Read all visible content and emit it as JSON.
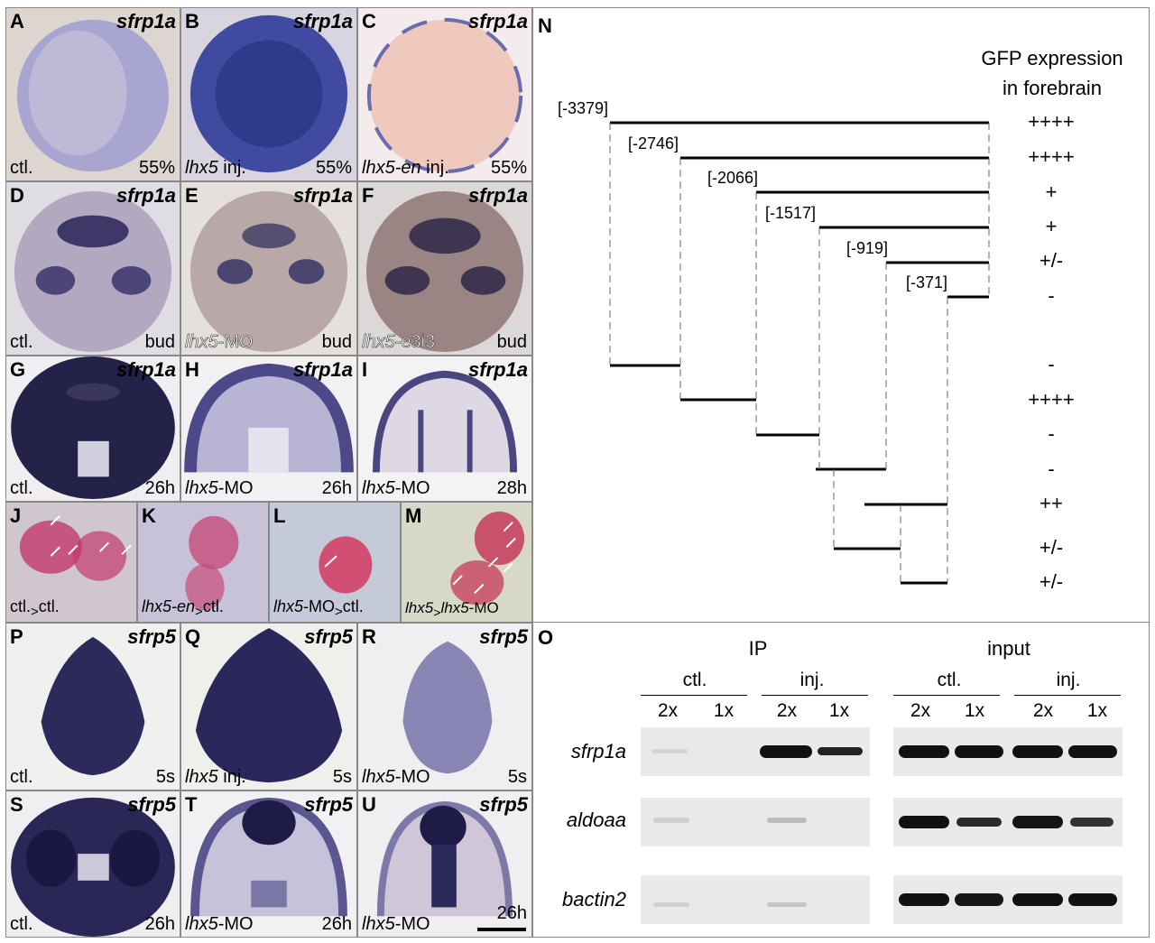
{
  "tiles_row1": [
    {
      "letter": "A",
      "gene": "sfrp1a",
      "cond": "ctl.",
      "stage": "55%"
    },
    {
      "letter": "B",
      "gene": "sfrp1a",
      "cond_i": "lhx5",
      "cond_rest": " inj.",
      "stage": "55%"
    },
    {
      "letter": "C",
      "gene": "sfrp1a",
      "cond_i": "lhx5-en",
      "cond_rest": " inj.",
      "stage": "55%"
    }
  ],
  "tiles_row2": [
    {
      "letter": "D",
      "gene": "sfrp1a",
      "cond": "ctl.",
      "stage": "bud"
    },
    {
      "letter": "E",
      "gene": "sfrp1a",
      "cond_i": "lhx5",
      "cond_rest": "-MO",
      "stage": "bud"
    },
    {
      "letter": "F",
      "gene": "sfrp1a",
      "cond_i": "lhx5",
      "cond_rest": "-e3i3",
      "stage": "bud"
    }
  ],
  "tiles_row3": [
    {
      "letter": "G",
      "gene": "sfrp1a",
      "cond": "ctl.",
      "stage": "26h"
    },
    {
      "letter": "H",
      "gene": "sfrp1a",
      "cond_i": "lhx5",
      "cond_rest": "-MO",
      "stage": "26h"
    },
    {
      "letter": "I",
      "gene": "sfrp1a",
      "cond_i": "lhx5",
      "cond_rest": "-MO",
      "stage": "28h"
    }
  ],
  "tiles_row4": [
    {
      "letter": "J",
      "cond_main": "ctl.",
      "cond_sub": ">",
      "cond_end": "ctl."
    },
    {
      "letter": "K",
      "cond_i": "lhx5-en",
      "cond_sub": ">",
      "cond_end": "ctl."
    },
    {
      "letter": "L",
      "cond_i": "lhx5",
      "cond_main": "-MO",
      "cond_sub": ">",
      "cond_end": "ctl."
    },
    {
      "letter": "M",
      "cond_i": "lhx5",
      "cond_sub": ">",
      "cond_i2": "lhx5",
      "cond_end": "-MO"
    }
  ],
  "tiles_row5": [
    {
      "letter": "P",
      "gene": "sfrp5",
      "cond": "ctl.",
      "stage": "5s"
    },
    {
      "letter": "Q",
      "gene": "sfrp5",
      "cond_i": "lhx5",
      "cond_rest": " inj.",
      "stage": "5s"
    },
    {
      "letter": "R",
      "gene": "sfrp5",
      "cond_i": "lhx5",
      "cond_rest": "-MO",
      "stage": "5s"
    }
  ],
  "tiles_row6": [
    {
      "letter": "S",
      "gene": "sfrp5",
      "cond": "ctl.",
      "stage": "26h"
    },
    {
      "letter": "T",
      "gene": "sfrp5",
      "cond_i": "lhx5",
      "cond_rest": "-MO",
      "stage": "26h"
    },
    {
      "letter": "U",
      "gene": "sfrp5",
      "cond_i": "lhx5",
      "cond_rest": "-MO",
      "stage": "26h"
    }
  ],
  "panel_n": {
    "letter": "N",
    "title_line1": "GFP expression",
    "title_line2": "in forebrain",
    "constructs": [
      "[-3379]",
      "[-2746]",
      "[-2066]",
      "[-1517]",
      "[-919]",
      "[-371]"
    ],
    "scores": [
      "++++",
      "++++",
      "+",
      "+",
      "+/-",
      "-",
      "-",
      "++++",
      "-",
      "-",
      "++",
      "+/-",
      "+/-"
    ]
  },
  "panel_o": {
    "letter": "O",
    "ip_label": "IP",
    "input_label": "input",
    "group_labels": [
      "ctl.",
      "inj.",
      "ctl.",
      "inj."
    ],
    "lane_labels": [
      "2x",
      "1x",
      "2x",
      "1x",
      "2x",
      "1x",
      "2x",
      "1x"
    ],
    "genes": [
      "sfrp1a",
      "aldoaa",
      "bactin2"
    ]
  }
}
